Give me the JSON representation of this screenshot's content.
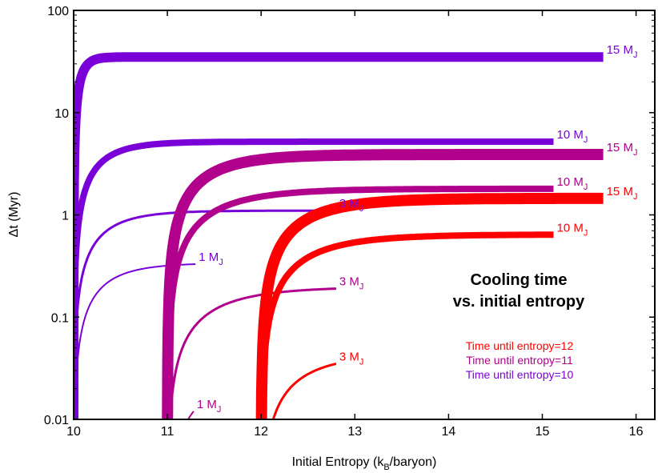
{
  "chart_data": {
    "type": "line",
    "title": "Cooling time",
    "subtitle": "vs. initial entropy",
    "xlabel": "Initial Entropy (k",
    "xlabel_sub": "B",
    "xlabel_end": "/baryon)",
    "ylabel": "Δt (Myr)",
    "xlim": [
      10,
      16.2
    ],
    "ylim": [
      0.01,
      100
    ],
    "y_scale": "log",
    "grid": false,
    "x_ticks": [
      10,
      11,
      12,
      13,
      14,
      15,
      16
    ],
    "x_tick_labels": [
      "10",
      "11",
      "12",
      "13",
      "14",
      "15",
      "16"
    ],
    "y_ticks": [
      0.01,
      0.1,
      1,
      10,
      100
    ],
    "y_tick_labels": [
      "0.01",
      "0.1",
      "1",
      "10",
      "100"
    ],
    "legend": [
      {
        "label": "Time until entropy=12",
        "color": "#ff0000"
      },
      {
        "label": "Time until entropy=11",
        "color": "#b0008c"
      },
      {
        "label": "Time until entropy=10",
        "color": "#7a00d8"
      }
    ],
    "series": [
      {
        "group": "entropy=10",
        "mass": "15 M",
        "mass_sub": "J",
        "color": "#7a00d8",
        "s0": 10,
        "x_end": 15.65,
        "y_end": 35,
        "tau": 0.08,
        "width": 12
      },
      {
        "group": "entropy=10",
        "mass": "10 M",
        "mass_sub": "J",
        "color": "#7a00d8",
        "s0": 10,
        "x_end": 15.12,
        "y_end": 5.2,
        "tau": 0.3,
        "width": 8
      },
      {
        "group": "entropy=10",
        "mass": "3 M",
        "mass_sub": "J",
        "color": "#7a00d8",
        "s0": 10,
        "x_end": 12.8,
        "y_end": 1.1,
        "tau": 0.35,
        "width": 3
      },
      {
        "group": "entropy=10",
        "mass": "1 M",
        "mass_sub": "J",
        "color": "#7a00d8",
        "s0": 10,
        "x_end": 11.3,
        "y_end": 0.33,
        "tau": 0.35,
        "width": 2
      },
      {
        "group": "entropy=11",
        "mass": "15 M",
        "mass_sub": "J",
        "color": "#b0008c",
        "s0": 11,
        "x_end": 15.65,
        "y_end": 3.9,
        "tau": 0.45,
        "width": 14
      },
      {
        "group": "entropy=11",
        "mass": "10 M",
        "mass_sub": "J",
        "color": "#b0008c",
        "s0": 11,
        "x_end": 15.12,
        "y_end": 1.8,
        "tau": 0.55,
        "width": 8
      },
      {
        "group": "entropy=11",
        "mass": "3 M",
        "mass_sub": "J",
        "color": "#b0008c",
        "s0": 11,
        "x_end": 12.8,
        "y_end": 0.19,
        "tau": 0.55,
        "width": 3
      },
      {
        "group": "entropy=11",
        "mass": "1 M",
        "mass_sub": "J",
        "color": "#b0008c",
        "s0": 11,
        "x_end": 11.28,
        "y_end": 0.012,
        "tau": 0.5,
        "width": 2
      },
      {
        "group": "entropy=12",
        "mass": "15 M",
        "mass_sub": "J",
        "color": "#ff0000",
        "s0": 12,
        "x_end": 15.65,
        "y_end": 1.45,
        "tau": 0.5,
        "width": 14
      },
      {
        "group": "entropy=12",
        "mass": "10 M",
        "mass_sub": "J",
        "color": "#ff0000",
        "s0": 12,
        "x_end": 15.12,
        "y_end": 0.64,
        "tau": 0.55,
        "width": 8
      },
      {
        "group": "entropy=12",
        "mass": "3 M",
        "mass_sub": "J",
        "color": "#ff0000",
        "s0": 12,
        "x_end": 12.8,
        "y_end": 0.035,
        "tau": 0.5,
        "width": 3
      }
    ]
  }
}
